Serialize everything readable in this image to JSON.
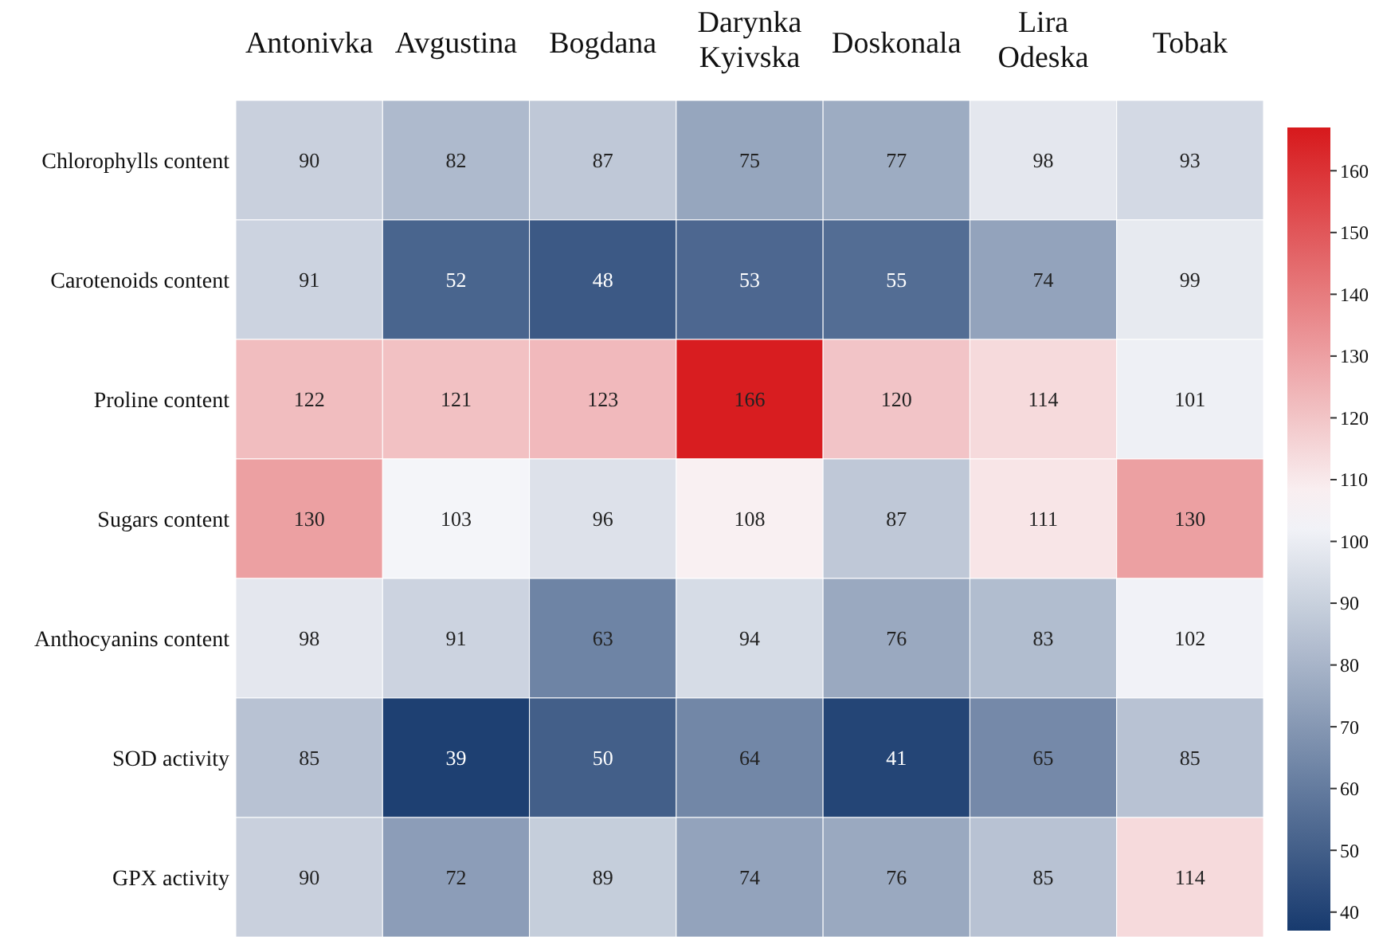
{
  "chart_data": {
    "type": "heatmap",
    "categories": [
      "Antonivka",
      "Avgustina",
      "Bogdana",
      "Darynka Kyivska",
      "Doskonala",
      "Lira Odeska",
      "Tobak"
    ],
    "y_categories": [
      "Chlorophylls content",
      "Carotenoids content",
      "Proline content",
      "Sugars content",
      "Anthocyanins content",
      "SOD activity",
      "GPX activity"
    ],
    "cells": [
      [
        90,
        82,
        87,
        75,
        77,
        98,
        93
      ],
      [
        91,
        52,
        48,
        53,
        55,
        74,
        99
      ],
      [
        122,
        121,
        123,
        166,
        120,
        114,
        101
      ],
      [
        130,
        103,
        96,
        108,
        87,
        111,
        130
      ],
      [
        98,
        91,
        63,
        94,
        76,
        83,
        102
      ],
      [
        85,
        39,
        50,
        64,
        41,
        65,
        85
      ],
      [
        90,
        72,
        89,
        74,
        76,
        85,
        114
      ]
    ],
    "data_labels": true,
    "clim": [
      37,
      167
    ],
    "cticks": [
      40,
      50,
      60,
      70,
      80,
      90,
      100,
      110,
      120,
      130,
      140,
      150,
      160
    ]
  }
}
